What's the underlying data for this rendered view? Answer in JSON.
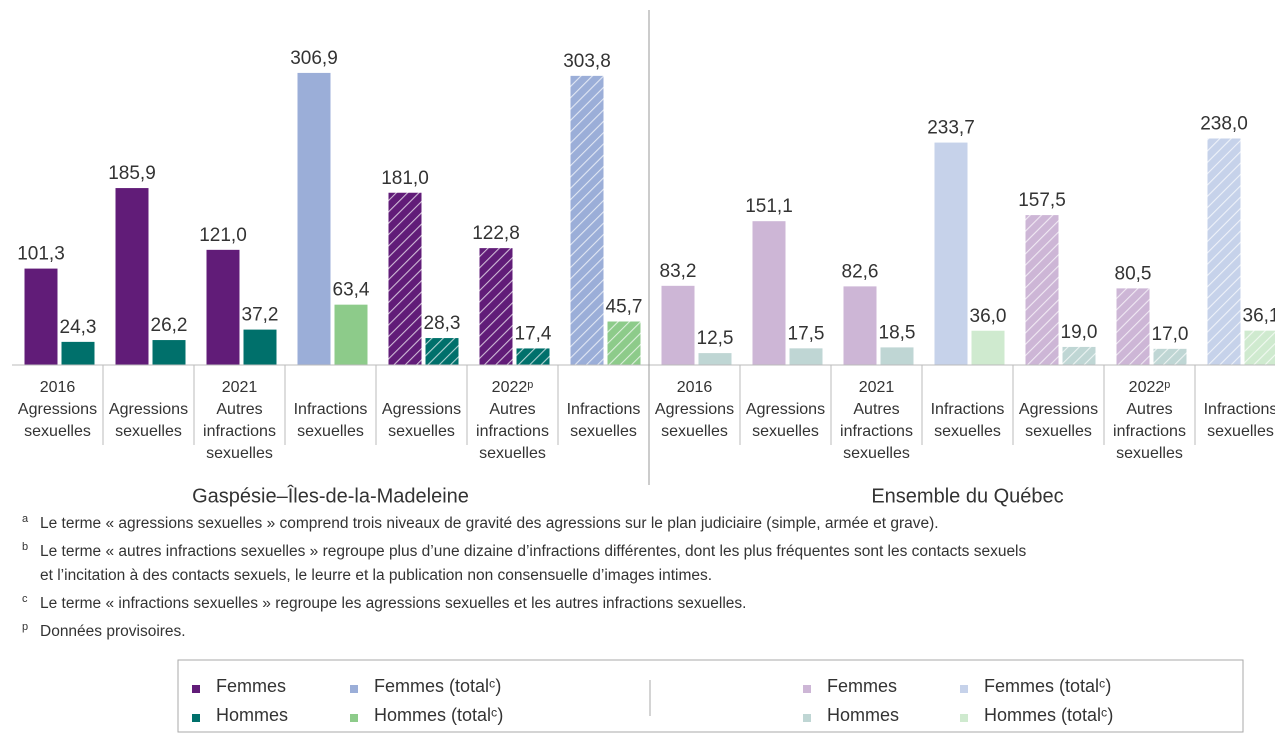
{
  "chart_data": {
    "type": "bar",
    "ylim": [
      0,
      373
    ],
    "hatch_color": "#ffffff",
    "regions": [
      {
        "name": "Gaspésie–Îles-de-la-Madeleine",
        "years": [
          {
            "label": "2016",
            "hatched": false,
            "categories": [
              "Agressions sexuelles"
            ]
          },
          {
            "label": "2021",
            "hatched": false,
            "categories": [
              "Agressions sexuelles",
              "Autres infractions sexuelles",
              "Infractions sexuelles"
            ]
          },
          {
            "label": "2022ᵖ",
            "hatched": true,
            "categories": [
              "Agressions sexuelles",
              "Autres infractions sexuelles",
              "Infractions sexuelles"
            ]
          }
        ],
        "series": [
          {
            "name": "Femmes",
            "color": "#611c78",
            "values": [
              101.3,
              185.9,
              121.0,
              null,
              181.0,
              122.8,
              null
            ],
            "value_labels": [
              "101,3",
              "185,9",
              "121,0",
              null,
              "181,0",
              "122,8",
              null
            ]
          },
          {
            "name": "Hommes",
            "color": "#00706b",
            "values": [
              24.3,
              26.2,
              37.2,
              null,
              28.3,
              17.4,
              null
            ],
            "value_labels": [
              "24,3",
              "26,2",
              "37,2",
              null,
              "28,3",
              "17,4",
              null
            ]
          },
          {
            "name": "Femmes (totalᶜ)",
            "color": "#9baed8",
            "values": [
              null,
              null,
              null,
              306.9,
              null,
              null,
              303.8
            ],
            "value_labels": [
              null,
              null,
              null,
              "306,9",
              null,
              null,
              "303,8"
            ]
          },
          {
            "name": "Hommes (totalᶜ)",
            "color": "#8dcb8a",
            "values": [
              null,
              null,
              null,
              63.4,
              null,
              null,
              45.7
            ],
            "value_labels": [
              null,
              null,
              null,
              "63,4",
              null,
              null,
              "45,7"
            ]
          }
        ]
      },
      {
        "name": "Ensemble du Québec",
        "years": [
          {
            "label": "2016",
            "hatched": false,
            "categories": [
              "Agressions sexuelles"
            ]
          },
          {
            "label": "2021",
            "hatched": false,
            "categories": [
              "Agressions sexuelles",
              "Autres infractions sexuelles",
              "Infractions sexuelles"
            ]
          },
          {
            "label": "2022ᵖ",
            "hatched": true,
            "categories": [
              "Agressions sexuelles",
              "Autres infractions sexuelles",
              "Infractions sexuelles"
            ]
          }
        ],
        "series": [
          {
            "name": "Femmes",
            "color": "#cdb6d6",
            "values": [
              83.2,
              151.1,
              82.6,
              null,
              157.5,
              80.5,
              null
            ],
            "value_labels": [
              "83,2",
              "151,1",
              "82,6",
              null,
              "157,5",
              "80,5",
              null
            ]
          },
          {
            "name": "Hommes",
            "color": "#bfd6d4",
            "values": [
              12.5,
              17.5,
              18.5,
              null,
              19.0,
              17.0,
              null
            ],
            "value_labels": [
              "12,5",
              "17,5",
              "18,5",
              null,
              "19,0",
              "17,0",
              null
            ]
          },
          {
            "name": "Femmes (totalᶜ)",
            "color": "#c6d2ea",
            "values": [
              null,
              null,
              null,
              233.7,
              null,
              null,
              238.0
            ],
            "value_labels": [
              null,
              null,
              null,
              "233,7",
              null,
              null,
              "238,0"
            ]
          },
          {
            "name": "Hommes (totalᶜ)",
            "color": "#cfeacf",
            "values": [
              null,
              null,
              null,
              36.0,
              null,
              null,
              36.1
            ],
            "value_labels": [
              null,
              null,
              null,
              "36,0",
              null,
              null,
              "36,1"
            ]
          }
        ]
      }
    ],
    "footnotes": [
      {
        "marker": "a",
        "lines": [
          "Le terme « agressions sexuelles » comprend trois niveaux de gravité des agressions sur le plan judiciaire (simple, armée et grave)."
        ]
      },
      {
        "marker": "b",
        "lines": [
          "Le terme « autres infractions sexuelles » regroupe plus d’une dizaine d’infractions différentes, dont les plus fréquentes sont les contacts sexuels",
          "et l’incitation à des contacts sexuels, le leurre et la publication non consensuelle d’images intimes."
        ]
      },
      {
        "marker": "c",
        "lines": [
          "Le terme « infractions sexuelles » regroupe les agressions sexuelles et les autres infractions sexuelles."
        ]
      },
      {
        "marker": "p",
        "lines": [
          "Données provisoires."
        ]
      }
    ]
  }
}
